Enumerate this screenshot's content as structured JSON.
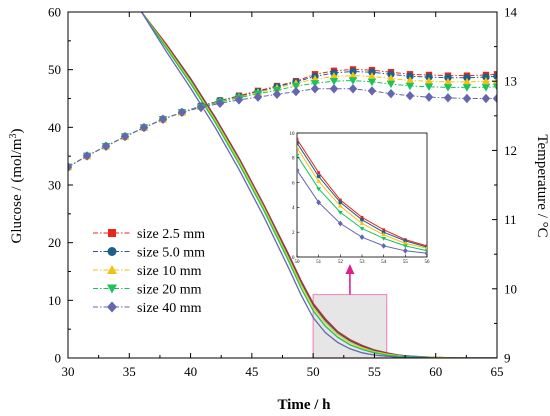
{
  "chart_data": {
    "type": "line",
    "xlabel": "Time / h",
    "ylabel_left_prefix": "Glucose / (mol/m",
    "ylabel_left_sup": "3",
    "ylabel_left_suffix": ")",
    "ylabel_right": "Temperature / °C",
    "xlim": [
      30,
      65
    ],
    "ylim_left": [
      0,
      60
    ],
    "ylim_right": [
      9,
      14
    ],
    "x_ticks": [
      "30",
      "35",
      "40",
      "45",
      "50",
      "55",
      "60",
      "65"
    ],
    "y_left_ticks": [
      "0",
      "10",
      "20",
      "30",
      "40",
      "50",
      "60"
    ],
    "y_right_ticks": [
      "9",
      "10",
      "11",
      "12",
      "13",
      "14"
    ],
    "legend_position": "lower-left",
    "series": [
      {
        "name": "size 2.5 mm",
        "color": "#e8261c",
        "marker": "square",
        "temperature": [
          [
            30.0,
            11.76
          ],
          [
            31.55,
            11.92
          ],
          [
            33.1,
            12.06
          ],
          [
            34.65,
            12.2
          ],
          [
            36.2,
            12.33
          ],
          [
            37.75,
            12.45
          ],
          [
            39.3,
            12.55
          ],
          [
            40.85,
            12.64
          ],
          [
            42.4,
            12.72
          ],
          [
            43.95,
            12.79
          ],
          [
            45.5,
            12.86
          ],
          [
            47.05,
            12.93
          ],
          [
            48.6,
            13.0
          ],
          [
            50.15,
            13.1
          ],
          [
            51.7,
            13.15
          ],
          [
            53.25,
            13.17
          ],
          [
            54.8,
            13.16
          ],
          [
            56.35,
            13.13
          ],
          [
            57.9,
            13.1
          ],
          [
            59.45,
            13.09
          ],
          [
            61.0,
            13.08
          ],
          [
            62.55,
            13.08
          ],
          [
            64.1,
            13.09
          ],
          [
            65.0,
            13.1
          ]
        ],
        "glucose": [
          [
            36.0,
            60.0
          ],
          [
            38.0,
            54.5
          ],
          [
            40.0,
            48.5
          ],
          [
            42.0,
            41.8
          ],
          [
            44.0,
            34.5
          ],
          [
            46.0,
            26.5
          ],
          [
            48.0,
            18.0
          ],
          [
            49.0,
            13.5
          ],
          [
            50.0,
            9.5
          ],
          [
            51.0,
            6.8
          ],
          [
            52.0,
            4.6
          ],
          [
            53.0,
            3.2
          ],
          [
            54.0,
            2.2
          ],
          [
            55.0,
            1.4
          ],
          [
            56.0,
            0.9
          ],
          [
            57.0,
            0.5
          ],
          [
            58.0,
            0.3
          ],
          [
            60.0,
            0.1
          ],
          [
            62.0,
            0.0
          ],
          [
            65.0,
            0.0
          ]
        ]
      },
      {
        "name": "size 5.0 mm",
        "color": "#1f5f8b",
        "marker": "circle",
        "temperature": [
          [
            30.0,
            11.76
          ],
          [
            31.55,
            11.92
          ],
          [
            33.1,
            12.06
          ],
          [
            34.65,
            12.2
          ],
          [
            36.2,
            12.33
          ],
          [
            37.75,
            12.45
          ],
          [
            39.3,
            12.55
          ],
          [
            40.85,
            12.64
          ],
          [
            42.4,
            12.72
          ],
          [
            43.95,
            12.78
          ],
          [
            45.5,
            12.85
          ],
          [
            47.05,
            12.92
          ],
          [
            48.6,
            12.99
          ],
          [
            50.15,
            13.07
          ],
          [
            51.7,
            13.12
          ],
          [
            53.25,
            13.14
          ],
          [
            54.8,
            13.13
          ],
          [
            56.35,
            13.1
          ],
          [
            57.9,
            13.07
          ],
          [
            59.45,
            13.06
          ],
          [
            61.0,
            13.05
          ],
          [
            62.55,
            13.05
          ],
          [
            64.1,
            13.06
          ],
          [
            65.0,
            13.07
          ]
        ],
        "glucose": [
          [
            36.0,
            60.0
          ],
          [
            38.0,
            54.3
          ],
          [
            40.0,
            48.3
          ],
          [
            42.0,
            41.6
          ],
          [
            44.0,
            34.3
          ],
          [
            46.0,
            26.3
          ],
          [
            48.0,
            17.7
          ],
          [
            49.0,
            13.2
          ],
          [
            50.0,
            9.2
          ],
          [
            51.0,
            6.5
          ],
          [
            52.0,
            4.4
          ],
          [
            53.0,
            3.0
          ],
          [
            54.0,
            2.0
          ],
          [
            55.0,
            1.3
          ],
          [
            56.0,
            0.8
          ],
          [
            57.0,
            0.5
          ],
          [
            58.0,
            0.3
          ],
          [
            60.0,
            0.1
          ],
          [
            62.0,
            0.0
          ],
          [
            65.0,
            0.0
          ]
        ]
      },
      {
        "name": "size 10 mm",
        "color": "#f2c111",
        "marker": "triangle-up",
        "temperature": [
          [
            30.0,
            11.76
          ],
          [
            31.55,
            11.92
          ],
          [
            33.1,
            12.06
          ],
          [
            34.65,
            12.2
          ],
          [
            36.2,
            12.33
          ],
          [
            37.75,
            12.45
          ],
          [
            39.3,
            12.55
          ],
          [
            40.85,
            12.63
          ],
          [
            42.4,
            12.71
          ],
          [
            43.95,
            12.77
          ],
          [
            45.5,
            12.84
          ],
          [
            47.05,
            12.9
          ],
          [
            48.6,
            12.97
          ],
          [
            50.15,
            13.03
          ],
          [
            51.7,
            13.07
          ],
          [
            53.25,
            13.08
          ],
          [
            54.8,
            13.07
          ],
          [
            56.35,
            13.04
          ],
          [
            57.9,
            13.01
          ],
          [
            59.45,
            13.0
          ],
          [
            61.0,
            12.99
          ],
          [
            62.55,
            12.99
          ],
          [
            64.1,
            13.0
          ],
          [
            65.0,
            13.0
          ]
        ],
        "glucose": [
          [
            36.0,
            60.0
          ],
          [
            38.0,
            54.1
          ],
          [
            40.0,
            48.0
          ],
          [
            42.0,
            41.3
          ],
          [
            44.0,
            34.0
          ],
          [
            46.0,
            26.0
          ],
          [
            48.0,
            17.3
          ],
          [
            49.0,
            12.8
          ],
          [
            50.0,
            8.8
          ],
          [
            51.0,
            6.1
          ],
          [
            52.0,
            4.1
          ],
          [
            53.0,
            2.7
          ],
          [
            54.0,
            1.8
          ],
          [
            55.0,
            1.1
          ],
          [
            56.0,
            0.7
          ],
          [
            57.0,
            0.4
          ],
          [
            58.0,
            0.2
          ],
          [
            60.0,
            0.1
          ],
          [
            62.0,
            0.0
          ],
          [
            65.0,
            0.0
          ]
        ]
      },
      {
        "name": "size 20 mm",
        "color": "#18c45b",
        "marker": "triangle-down",
        "temperature": [
          [
            30.0,
            11.76
          ],
          [
            31.55,
            11.92
          ],
          [
            33.1,
            12.06
          ],
          [
            34.65,
            12.2
          ],
          [
            36.2,
            12.33
          ],
          [
            37.75,
            12.45
          ],
          [
            39.3,
            12.55
          ],
          [
            40.85,
            12.63
          ],
          [
            42.4,
            12.7
          ],
          [
            43.95,
            12.76
          ],
          [
            45.5,
            12.82
          ],
          [
            47.05,
            12.87
          ],
          [
            48.6,
            12.93
          ],
          [
            50.15,
            12.97
          ],
          [
            51.7,
            13.0
          ],
          [
            53.25,
            13.01
          ],
          [
            54.8,
            12.99
          ],
          [
            56.35,
            12.96
          ],
          [
            57.9,
            12.93
          ],
          [
            59.45,
            12.92
          ],
          [
            61.0,
            12.91
          ],
          [
            62.55,
            12.91
          ],
          [
            64.1,
            12.91
          ],
          [
            65.0,
            12.92
          ]
        ],
        "glucose": [
          [
            36.0,
            60.0
          ],
          [
            38.0,
            53.8
          ],
          [
            40.0,
            47.6
          ],
          [
            42.0,
            40.9
          ],
          [
            44.0,
            33.5
          ],
          [
            46.0,
            25.5
          ],
          [
            48.0,
            16.8
          ],
          [
            49.0,
            12.2
          ],
          [
            50.0,
            8.2
          ],
          [
            51.0,
            5.5
          ],
          [
            52.0,
            3.6
          ],
          [
            53.0,
            2.3
          ],
          [
            54.0,
            1.5
          ],
          [
            55.0,
            0.9
          ],
          [
            56.0,
            0.5
          ],
          [
            57.0,
            0.3
          ],
          [
            58.0,
            0.2
          ],
          [
            60.0,
            0.0
          ],
          [
            62.0,
            0.0
          ],
          [
            65.0,
            0.0
          ]
        ]
      },
      {
        "name": "size 40 mm",
        "color": "#6666b0",
        "marker": "diamond",
        "temperature": [
          [
            30.0,
            11.76
          ],
          [
            31.55,
            11.92
          ],
          [
            33.1,
            12.06
          ],
          [
            34.65,
            12.2
          ],
          [
            36.2,
            12.33
          ],
          [
            37.75,
            12.45
          ],
          [
            39.3,
            12.55
          ],
          [
            40.85,
            12.62
          ],
          [
            42.4,
            12.68
          ],
          [
            43.95,
            12.73
          ],
          [
            45.5,
            12.77
          ],
          [
            47.05,
            12.81
          ],
          [
            48.6,
            12.85
          ],
          [
            50.15,
            12.89
          ],
          [
            51.7,
            12.89
          ],
          [
            53.25,
            12.89
          ],
          [
            54.8,
            12.86
          ],
          [
            56.35,
            12.82
          ],
          [
            57.9,
            12.79
          ],
          [
            59.45,
            12.77
          ],
          [
            61.0,
            12.76
          ],
          [
            62.55,
            12.75
          ],
          [
            64.1,
            12.75
          ],
          [
            65.0,
            12.75
          ]
        ],
        "glucose": [
          [
            36.0,
            60.0
          ],
          [
            38.0,
            53.2
          ],
          [
            40.0,
            46.8
          ],
          [
            42.0,
            40.0
          ],
          [
            44.0,
            32.5
          ],
          [
            46.0,
            24.4
          ],
          [
            48.0,
            15.6
          ],
          [
            49.0,
            11.0
          ],
          [
            50.0,
            7.0
          ],
          [
            51.0,
            4.4
          ],
          [
            52.0,
            2.7
          ],
          [
            53.0,
            1.6
          ],
          [
            54.0,
            0.9
          ],
          [
            55.0,
            0.5
          ],
          [
            56.0,
            0.3
          ],
          [
            57.0,
            0.1
          ],
          [
            58.0,
            0.1
          ],
          [
            60.0,
            0.0
          ],
          [
            62.0,
            0.0
          ],
          [
            65.0,
            0.0
          ]
        ]
      }
    ],
    "zoom_region": {
      "xlim": [
        50,
        56
      ],
      "ylim": [
        0,
        11
      ],
      "fill": "#e6e6e6",
      "border": "#f08fbf",
      "arrow_color": "#e0208a"
    },
    "inset": {
      "xlim": [
        50,
        56
      ],
      "ylim": [
        0,
        10
      ],
      "x_ticks": [
        "50",
        "51",
        "52",
        "53",
        "54",
        "55",
        "56"
      ],
      "y_ticks": [
        "0",
        "2",
        "4",
        "6",
        "8",
        "10"
      ]
    }
  }
}
